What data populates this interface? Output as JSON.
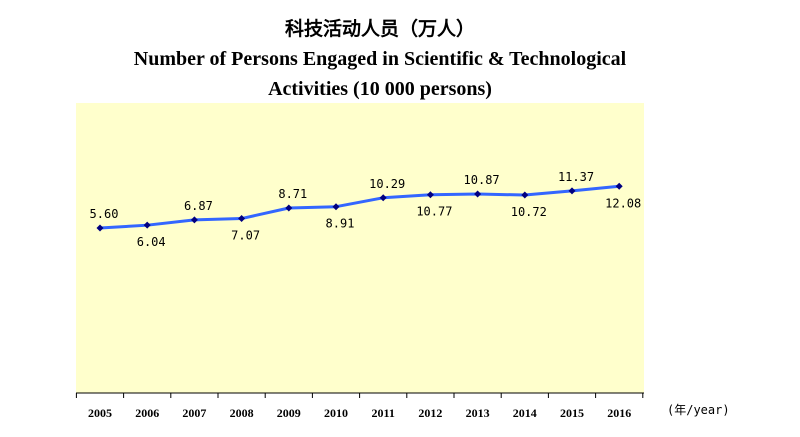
{
  "title_cn": "科技活动人员（万人）",
  "title_en_line1": "Number of Persons Engaged in Scientific & Technological",
  "title_en_line2": "Activities (10 000 persons)",
  "x_unit_label": "(年/year)",
  "colors": {
    "plot_background": "#ffffcc",
    "line": "#3366ff",
    "marker": "#000080",
    "axis": "#000000"
  },
  "chart_data": {
    "type": "line",
    "title": "Number of Persons Engaged in Scientific & Technological Activities (10 000 persons)",
    "categories": [
      "2005",
      "2006",
      "2007",
      "2008",
      "2009",
      "2010",
      "2011",
      "2012",
      "2013",
      "2014",
      "2015",
      "2016"
    ],
    "values": [
      5.6,
      6.04,
      6.87,
      7.07,
      8.71,
      8.91,
      10.29,
      10.77,
      10.87,
      10.72,
      11.37,
      12.08
    ],
    "value_labels": [
      "5.60",
      "6.04",
      "6.87",
      "7.07",
      "8.71",
      "8.91",
      "10.29",
      "10.77",
      "10.87",
      "10.72",
      "11.37",
      "12.08"
    ],
    "label_positions": [
      "above",
      "below",
      "above",
      "below",
      "above",
      "below",
      "above",
      "below",
      "above",
      "below",
      "above",
      "below"
    ],
    "ylim": [
      -20,
      25
    ],
    "grid": false,
    "legend": "none",
    "y_axis_visible": false
  }
}
